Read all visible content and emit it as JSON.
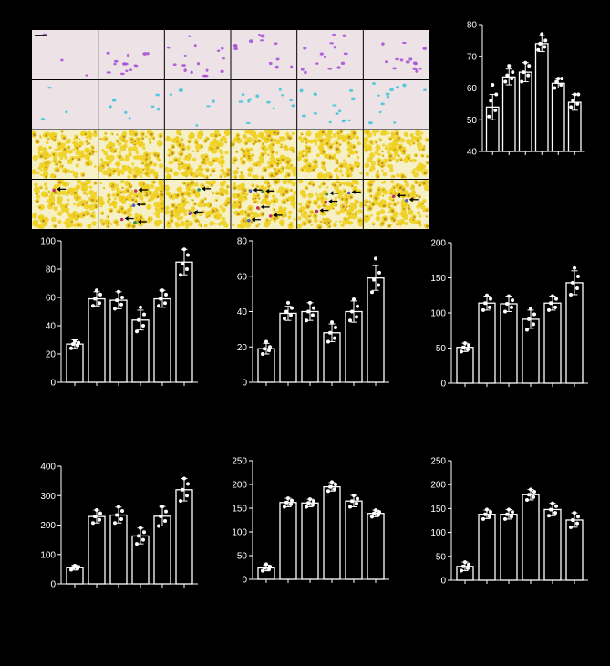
{
  "micrograph_panel": {
    "rows": [
      "purple-stain",
      "cyan-stain",
      "yellow-stain",
      "yellow-stain-with-arrows"
    ],
    "columns": 6,
    "colors": {
      "purple": "#a64bd6",
      "cyan": "#3cc4d8",
      "yellow": "#f0d020",
      "background": "#ede2e6",
      "arrow": "#000000"
    }
  },
  "chart_data": [
    {
      "type": "bar",
      "ylim": [
        40,
        80
      ],
      "yticks": [
        "40",
        "50",
        "60",
        "70",
        "80"
      ],
      "values": [
        54,
        63.5,
        65,
        74,
        61.5,
        55.5
      ],
      "errors": [
        4,
        2.5,
        3,
        2.5,
        1.5,
        2.5
      ],
      "points": [
        [
          51,
          53,
          56,
          58,
          61
        ],
        [
          62,
          63,
          64,
          65,
          67
        ],
        [
          62,
          64,
          65,
          67,
          68
        ],
        [
          72,
          73,
          74,
          75,
          77
        ],
        [
          60,
          61,
          62,
          63,
          63
        ],
        [
          54,
          55,
          56,
          58,
          58
        ]
      ]
    },
    {
      "type": "bar",
      "ylim": [
        0,
        100
      ],
      "yticks": [
        "0",
        "20",
        "40",
        "60",
        "80",
        "100"
      ],
      "values": [
        27,
        59,
        58,
        44,
        59,
        85
      ],
      "errors": [
        3,
        5,
        6,
        7,
        6,
        9
      ],
      "points": [
        [
          24,
          26,
          27,
          28,
          29
        ],
        [
          54,
          56,
          59,
          62,
          65
        ],
        [
          52,
          55,
          58,
          60,
          64
        ],
        [
          36,
          40,
          44,
          48,
          53
        ],
        [
          54,
          56,
          59,
          62,
          65
        ],
        [
          76,
          80,
          84,
          90,
          94
        ]
      ]
    },
    {
      "type": "bar",
      "ylim": [
        0,
        80
      ],
      "yticks": [
        "0",
        "20",
        "40",
        "60",
        "80"
      ],
      "values": [
        19,
        39,
        40,
        28,
        40,
        59
      ],
      "errors": [
        3,
        4,
        5,
        5,
        6,
        7
      ],
      "points": [
        [
          16,
          18,
          19,
          20,
          23
        ],
        [
          36,
          38,
          40,
          42,
          45
        ],
        [
          35,
          38,
          40,
          42,
          45
        ],
        [
          23,
          25,
          28,
          31,
          34
        ],
        [
          35,
          37,
          40,
          43,
          47
        ],
        [
          51,
          55,
          58,
          62,
          70
        ]
      ]
    },
    {
      "type": "bar",
      "ylim": [
        0,
        200
      ],
      "yticks": [
        "0",
        "50",
        "100",
        "150",
        "200"
      ],
      "values": [
        51,
        114,
        113,
        91,
        114,
        143
      ],
      "errors": [
        6,
        10,
        11,
        13,
        10,
        17
      ],
      "points": [
        [
          45,
          48,
          51,
          54,
          57
        ],
        [
          104,
          108,
          114,
          120,
          125
        ],
        [
          102,
          108,
          113,
          118,
          124
        ],
        [
          76,
          84,
          91,
          98,
          106
        ],
        [
          104,
          108,
          114,
          120,
          124
        ],
        [
          126,
          135,
          143,
          152,
          164
        ]
      ]
    },
    {
      "type": "bar",
      "ylim": [
        0,
        400
      ],
      "yticks": [
        "0",
        "100",
        "200",
        "300",
        "400"
      ],
      "values": [
        55,
        229,
        234,
        163,
        230,
        320
      ],
      "errors": [
        8,
        22,
        27,
        27,
        33,
        38
      ],
      "points": [
        [
          48,
          52,
          55,
          58,
          62
        ],
        [
          207,
          218,
          229,
          240,
          251
        ],
        [
          207,
          220,
          234,
          248,
          262
        ],
        [
          136,
          150,
          163,
          176,
          190
        ],
        [
          197,
          214,
          230,
          246,
          263
        ],
        [
          282,
          300,
          320,
          340,
          358
        ]
      ]
    },
    {
      "type": "bar",
      "ylim": [
        0,
        250
      ],
      "yticks": [
        "0",
        "50",
        "100",
        "150",
        "200",
        "250"
      ],
      "values": [
        24,
        162,
        161,
        195,
        165,
        139
      ],
      "errors": [
        6,
        9,
        8,
        9,
        12,
        7
      ],
      "points": [
        [
          18,
          21,
          24,
          27,
          32
        ],
        [
          153,
          158,
          162,
          166,
          171
        ],
        [
          153,
          157,
          161,
          165,
          169
        ],
        [
          186,
          190,
          195,
          200,
          205
        ],
        [
          153,
          160,
          165,
          170,
          177
        ],
        [
          132,
          136,
          139,
          142,
          146
        ]
      ]
    },
    {
      "type": "bar",
      "ylim": [
        0,
        250
      ],
      "yticks": [
        "0",
        "50",
        "100",
        "150",
        "200",
        "250"
      ],
      "values": [
        29,
        138,
        138,
        179,
        148,
        126
      ],
      "errors": [
        9,
        9,
        10,
        11,
        13,
        15
      ],
      "points": [
        [
          20,
          25,
          29,
          33,
          38
        ],
        [
          128,
          133,
          138,
          143,
          148
        ],
        [
          128,
          133,
          138,
          143,
          148
        ],
        [
          168,
          174,
          179,
          185,
          190
        ],
        [
          135,
          141,
          148,
          155,
          161
        ],
        [
          111,
          119,
          126,
          133,
          141
        ]
      ]
    }
  ]
}
